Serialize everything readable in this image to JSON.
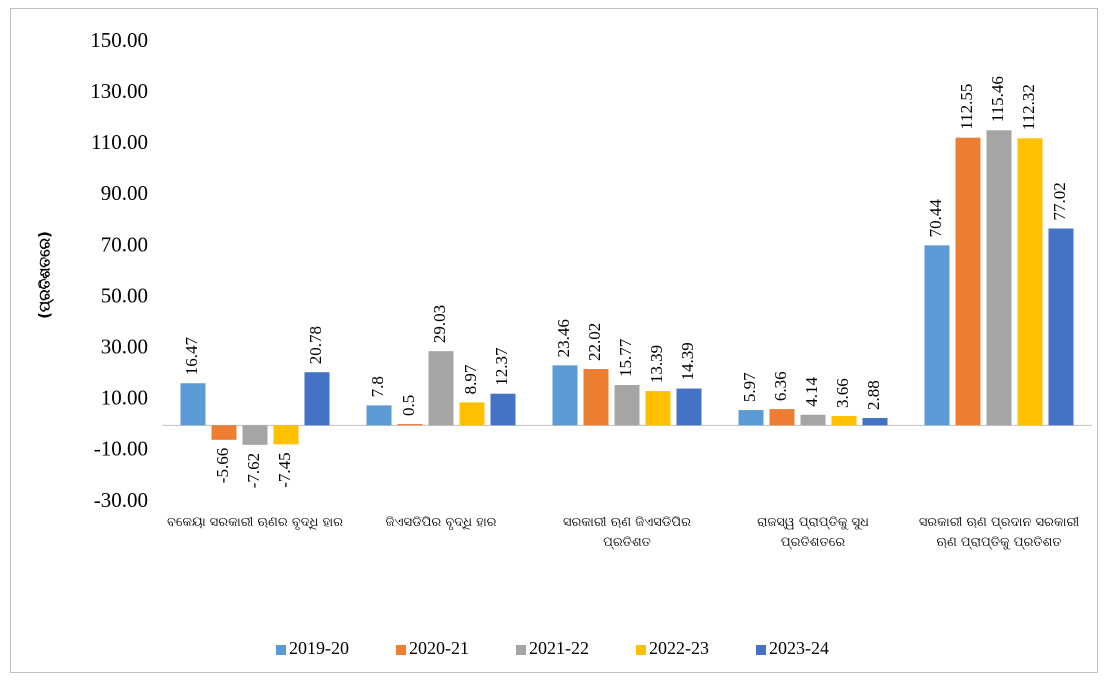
{
  "chart_data": {
    "type": "bar",
    "y_label": "(ପ୍ରତିଶତରେ)",
    "categories": [
      "ବକେୟା ସରକାରୀ ଋଣର ବୃଦ୍ଧି ହାର",
      "ଜିଏସଡିପିର ବୃଦ୍ଧି ହାର",
      "ସରକାରୀ ଋଣ ଜିଏସଡିପିର ପ୍ରତିଶତ",
      "ରାଜସ୍ୱ ପ୍ରାପ୍ତିକୁ ସୁଧ ପ୍ରତିଶତରେ",
      "ସରକାରୀ ଋଣ ପ୍ରଦାନ ସରକାରୀ ଋଣ ପ୍ରାପ୍ତିକୁ ପ୍ରତିଶତ"
    ],
    "series": [
      {
        "name": "2019-20",
        "color": "#5b9bd5",
        "values": [
          16.47,
          7.8,
          23.46,
          5.97,
          70.44
        ]
      },
      {
        "name": "2020-21",
        "color": "#ed7d31",
        "values": [
          -5.66,
          0.5,
          22.02,
          6.36,
          112.55
        ]
      },
      {
        "name": "2021-22",
        "color": "#a5a5a5",
        "values": [
          -7.62,
          29.03,
          15.77,
          4.14,
          115.46
        ]
      },
      {
        "name": "2022-23",
        "color": "#ffc000",
        "values": [
          -7.45,
          8.97,
          13.39,
          3.66,
          112.32
        ]
      },
      {
        "name": "2023-24",
        "color": "#4472c4",
        "values": [
          20.78,
          12.37,
          14.39,
          2.88,
          77.02
        ]
      }
    ],
    "ylim": [
      -30,
      150
    ],
    "yticks": [
      {
        "value": -30,
        "label": "-30.00"
      },
      {
        "value": -10,
        "label": "-10.00"
      },
      {
        "value": 10,
        "label": "10.00"
      },
      {
        "value": 30,
        "label": "30.00"
      },
      {
        "value": 50,
        "label": "50.00"
      },
      {
        "value": 70,
        "label": "70.00"
      },
      {
        "value": 90,
        "label": "90.00"
      },
      {
        "value": 110,
        "label": "110.00"
      },
      {
        "value": 130,
        "label": "130.00"
      },
      {
        "value": 150,
        "label": "150.00"
      }
    ],
    "grid": false,
    "data_labels": true,
    "legend": "bottom"
  }
}
